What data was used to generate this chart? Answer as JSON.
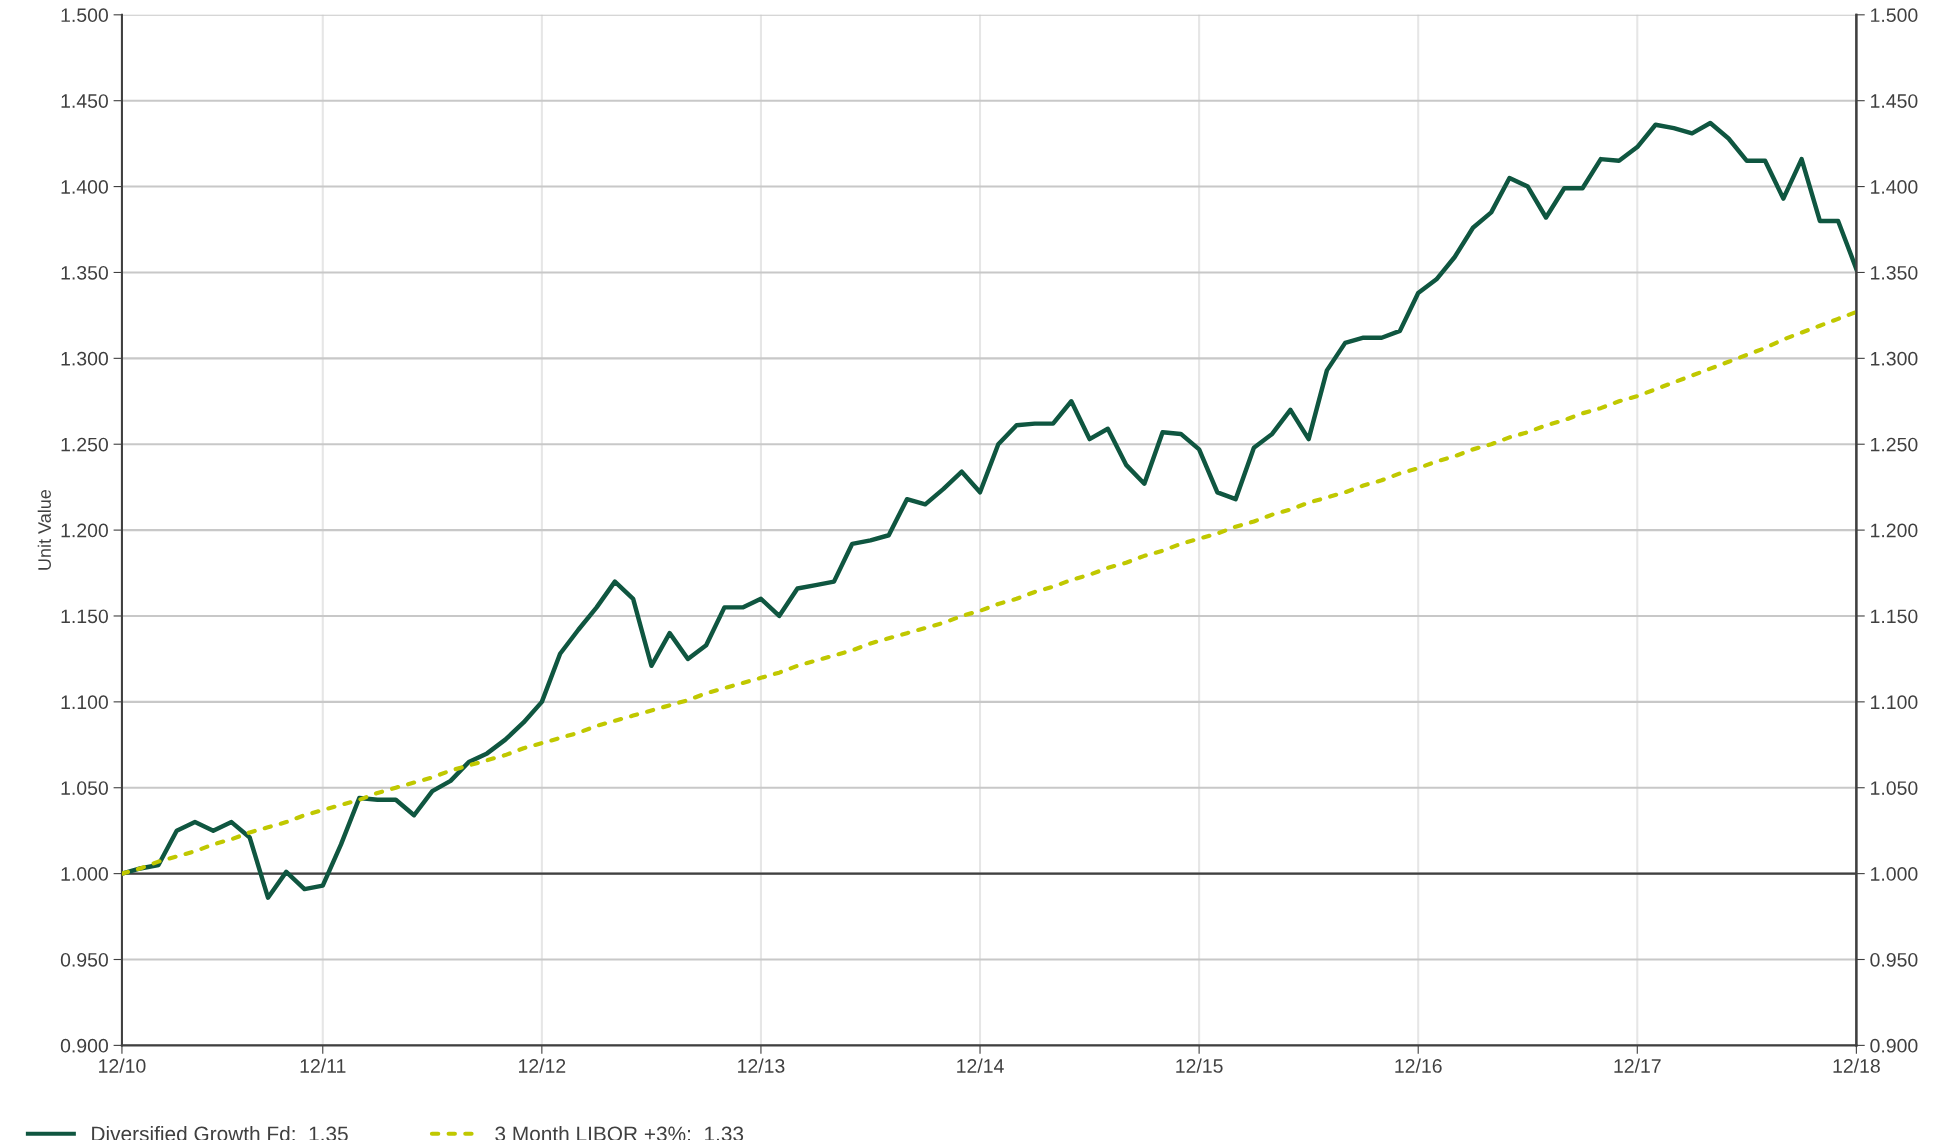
{
  "chart_data": {
    "type": "line",
    "ylabel": "Unit Value",
    "categories": [
      "12/10",
      null,
      null,
      null,
      null,
      null,
      null,
      null,
      null,
      null,
      null,
      "12/11",
      null,
      null,
      null,
      null,
      null,
      null,
      null,
      null,
      null,
      null,
      null,
      "12/12",
      null,
      null,
      null,
      null,
      null,
      null,
      null,
      null,
      null,
      null,
      null,
      "12/13",
      null,
      null,
      null,
      null,
      null,
      null,
      null,
      null,
      null,
      null,
      null,
      "12/14",
      null,
      null,
      null,
      null,
      null,
      null,
      null,
      null,
      null,
      null,
      null,
      "12/15",
      null,
      null,
      null,
      null,
      null,
      null,
      null,
      null,
      null,
      null,
      null,
      "12/16",
      null,
      null,
      null,
      null,
      null,
      null,
      null,
      null,
      null,
      null,
      null,
      "12/17",
      null,
      null,
      null,
      null,
      null,
      null,
      null,
      null,
      null,
      null,
      null,
      "12/18"
    ],
    "ylim": [
      0.9,
      1.5
    ],
    "yticks": [
      {
        "value": 0.9,
        "label": "0.900"
      },
      {
        "value": 0.95,
        "label": "0.950"
      },
      {
        "value": 1.0,
        "label": "1.000"
      },
      {
        "value": 1.05,
        "label": "1.050"
      },
      {
        "value": 1.1,
        "label": "1.100"
      },
      {
        "value": 1.15,
        "label": "1.150"
      },
      {
        "value": 1.2,
        "label": "1.200"
      },
      {
        "value": 1.25,
        "label": "1.250"
      },
      {
        "value": 1.3,
        "label": "1.300"
      },
      {
        "value": 1.35,
        "label": "1.350"
      },
      {
        "value": 1.4,
        "label": "1.400"
      },
      {
        "value": 1.45,
        "label": "1.450"
      },
      {
        "value": 1.5,
        "label": "1.500"
      }
    ],
    "y2lim": [
      0.9,
      1.5
    ],
    "y2ticks": [
      {
        "value": 0.9,
        "label": "0.900"
      },
      {
        "value": 0.95,
        "label": "0.950"
      },
      {
        "value": 1.0,
        "label": "1.000"
      },
      {
        "value": 1.05,
        "label": "1.050"
      },
      {
        "value": 1.1,
        "label": "1.100"
      },
      {
        "value": 1.15,
        "label": "1.150"
      },
      {
        "value": 1.2,
        "label": "1.200"
      },
      {
        "value": 1.25,
        "label": "1.250"
      },
      {
        "value": 1.3,
        "label": "1.300"
      },
      {
        "value": 1.35,
        "label": "1.350"
      },
      {
        "value": 1.4,
        "label": "1.400"
      },
      {
        "value": 1.45,
        "label": "1.450"
      },
      {
        "value": 1.5,
        "label": "1.500"
      }
    ],
    "grid": true,
    "legend": "bottom",
    "ref_lines": [
      {
        "axis": "y",
        "value": 1.0,
        "color": "#404040"
      }
    ],
    "series": [
      {
        "name": "Diversified Growth Fd:  1.35",
        "color": "#0f5640",
        "line_style": "solid",
        "values": [
          1.0,
          1.003,
          1.005,
          1.025,
          1.03,
          1.025,
          1.03,
          1.021,
          0.986,
          1.001,
          0.991,
          0.993,
          1.017,
          1.044,
          1.043,
          1.043,
          1.034,
          1.048,
          1.054,
          1.065,
          1.07,
          1.078,
          1.088,
          1.1,
          1.128,
          1.142,
          1.155,
          1.17,
          1.16,
          1.121,
          1.14,
          1.125,
          1.133,
          1.155,
          1.155,
          1.16,
          1.15,
          1.166,
          1.168,
          1.17,
          1.192,
          1.194,
          1.197,
          1.218,
          1.215,
          1.224,
          1.234,
          1.222,
          1.25,
          1.261,
          1.262,
          1.262,
          1.275,
          1.253,
          1.259,
          1.238,
          1.227,
          1.257,
          1.256,
          1.247,
          1.222,
          1.218,
          1.248,
          1.256,
          1.27,
          1.253,
          1.293,
          1.309,
          1.312,
          1.312,
          1.316,
          1.338,
          1.346,
          1.359,
          1.376,
          1.385,
          1.405,
          1.4,
          1.382,
          1.399,
          1.399,
          1.416,
          1.415,
          1.423,
          1.436,
          1.434,
          1.431,
          1.437,
          1.428,
          1.415,
          1.415,
          1.393,
          1.416,
          1.38,
          1.38,
          1.352
        ]
      },
      {
        "name": "3 Month LIBOR +3%:  1.33",
        "color": "#c0c800",
        "line_style": "dotted",
        "values": [
          1.0,
          1.003,
          1.007,
          1.01,
          1.013,
          1.017,
          1.02,
          1.024,
          1.027,
          1.03,
          1.034,
          1.037,
          1.04,
          1.043,
          1.047,
          1.05,
          1.053,
          1.056,
          1.06,
          1.063,
          1.066,
          1.069,
          1.073,
          1.076,
          1.079,
          1.082,
          1.086,
          1.089,
          1.092,
          1.095,
          1.098,
          1.101,
          1.105,
          1.108,
          1.111,
          1.114,
          1.117,
          1.121,
          1.124,
          1.127,
          1.13,
          1.134,
          1.137,
          1.14,
          1.143,
          1.146,
          1.15,
          1.153,
          1.157,
          1.16,
          1.164,
          1.167,
          1.171,
          1.174,
          1.178,
          1.181,
          1.185,
          1.188,
          1.192,
          1.195,
          1.198,
          1.202,
          1.205,
          1.209,
          1.212,
          1.216,
          1.219,
          1.222,
          1.226,
          1.229,
          1.233,
          1.236,
          1.24,
          1.243,
          1.247,
          1.25,
          1.254,
          1.257,
          1.261,
          1.264,
          1.268,
          1.271,
          1.275,
          1.278,
          1.282,
          1.286,
          1.29,
          1.294,
          1.298,
          1.302,
          1.306,
          1.311,
          1.315,
          1.319,
          1.323,
          1.327
        ]
      }
    ]
  }
}
